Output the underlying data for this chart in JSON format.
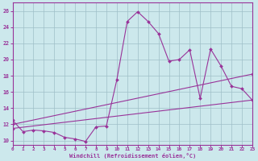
{
  "xlabel": "Windchill (Refroidissement éolien,°C)",
  "background_color": "#cce8ec",
  "line_color": "#993399",
  "xlim": [
    0,
    23
  ],
  "ylim": [
    9.5,
    27
  ],
  "xticks": [
    0,
    1,
    2,
    3,
    4,
    5,
    6,
    7,
    8,
    9,
    10,
    11,
    12,
    13,
    14,
    15,
    16,
    17,
    18,
    19,
    20,
    21,
    22,
    23
  ],
  "yticks": [
    10,
    12,
    14,
    16,
    18,
    20,
    22,
    24,
    26
  ],
  "main_x": [
    0,
    1,
    2,
    3,
    4,
    5,
    6,
    7,
    8,
    9,
    10,
    11,
    12,
    13,
    14,
    15,
    16,
    17,
    18,
    19,
    20,
    21,
    22,
    23
  ],
  "main_y": [
    12.5,
    11.1,
    11.3,
    11.2,
    11.0,
    10.4,
    10.2,
    9.9,
    11.7,
    11.8,
    17.5,
    24.7,
    25.9,
    24.7,
    23.2,
    19.8,
    20.0,
    21.2,
    15.2,
    21.3,
    19.2,
    16.7,
    16.4,
    15.0
  ],
  "upper_line_x": [
    0,
    23
  ],
  "upper_line_y": [
    12.0,
    18.2
  ],
  "lower_line_x": [
    0,
    23
  ],
  "lower_line_y": [
    11.5,
    15.0
  ]
}
